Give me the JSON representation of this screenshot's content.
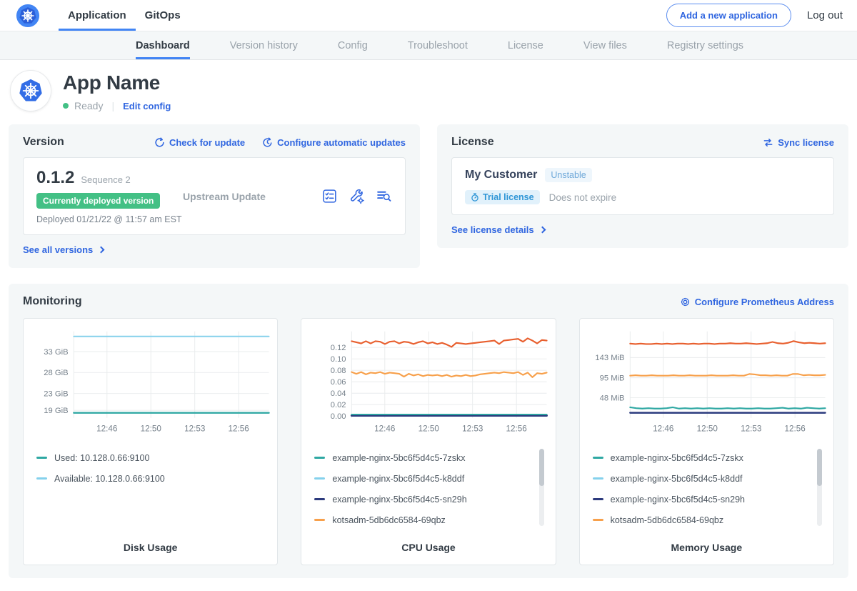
{
  "colors": {
    "link_blue": "#3066e0",
    "kubernetes_blue": "#326de6",
    "active_underline": "#4285f4",
    "deployed_green": "#43c085",
    "series_teal": "#2fa8a3",
    "series_light_blue": "#85d1ec",
    "series_navy": "#2c3a7d",
    "series_orange": "#f7a04b",
    "series_red_orange": "#e85f2e"
  },
  "topnav": {
    "items": [
      {
        "label": "Application",
        "active": true
      },
      {
        "label": "GitOps",
        "active": false
      }
    ],
    "add_app_button": "Add a new application",
    "logout": "Log out"
  },
  "subnav": {
    "tabs": [
      {
        "label": "Dashboard",
        "active": true
      },
      {
        "label": "Version history",
        "active": false
      },
      {
        "label": "Config",
        "active": false
      },
      {
        "label": "Troubleshoot",
        "active": false
      },
      {
        "label": "License",
        "active": false
      },
      {
        "label": "View files",
        "active": false
      },
      {
        "label": "Registry settings",
        "active": false
      }
    ]
  },
  "app_header": {
    "name": "App Name",
    "status": "Ready",
    "edit_config": "Edit config"
  },
  "version_card": {
    "title": "Version",
    "check_for_update": "Check for update",
    "configure_auto_updates": "Configure automatic updates",
    "version_number": "0.1.2",
    "sequence": "Sequence 2",
    "deployed_badge": "Currently deployed version",
    "deployed_at": "Deployed 01/21/22 @ 11:57 am EST",
    "update_type": "Upstream Update",
    "action_icons": [
      "preflight-checks-icon",
      "edit-config-icon",
      "view-logs-icon"
    ],
    "see_all": "See all versions"
  },
  "license_card": {
    "title": "License",
    "sync": "Sync license",
    "customer": "My Customer",
    "channel_badge": "Unstable",
    "trial_badge": "Trial license",
    "expiry": "Does not expire",
    "see_details": "See license details"
  },
  "monitoring": {
    "title": "Monitoring",
    "configure_link": "Configure Prometheus Address"
  },
  "chart_data": [
    {
      "type": "line",
      "title": "Disk Usage",
      "x_ticks": [
        "12:46",
        "12:50",
        "12:53",
        "12:56"
      ],
      "y_ticks": [
        {
          "label": "33 GiB",
          "value": 33
        },
        {
          "label": "28 GiB",
          "value": 28
        },
        {
          "label": "23 GiB",
          "value": 23
        },
        {
          "label": "19 GiB",
          "value": 19
        }
      ],
      "ylim": [
        17.2,
        37.8
      ],
      "grid": true,
      "legend_position": "bottom-left",
      "scrollbar": false,
      "series": [
        {
          "name": "Available: 10.128.0.66:9100",
          "color": "#85d1ec",
          "width": 2,
          "values": [
            36.6,
            36.6,
            36.6
          ]
        },
        {
          "name": "Used: 10.128.0.66:9100",
          "color": "#2fa8a3",
          "width": 2.5,
          "values": [
            18.4,
            18.4,
            18.4
          ]
        }
      ],
      "legend": [
        {
          "label": "Used: 10.128.0.66:9100",
          "color": "#2fa8a3"
        },
        {
          "label": "Available: 10.128.0.66:9100",
          "color": "#85d1ec"
        }
      ]
    },
    {
      "type": "line",
      "title": "CPU Usage",
      "x_ticks": [
        "12:46",
        "12:50",
        "12:53",
        "12:56"
      ],
      "y_ticks": [
        {
          "label": "0.12",
          "value": 0.12
        },
        {
          "label": "0.10",
          "value": 0.1
        },
        {
          "label": "0.08",
          "value": 0.08
        },
        {
          "label": "0.06",
          "value": 0.06
        },
        {
          "label": "0.04",
          "value": 0.04
        },
        {
          "label": "0.02",
          "value": 0.02
        },
        {
          "label": "0.00",
          "value": 0.0
        }
      ],
      "ylim": [
        -0.003,
        0.148
      ],
      "grid": true,
      "legend_position": "bottom-left",
      "scrollbar": true,
      "series": [
        {
          "name": "example-nginx-5bc6f5d4c5-k8ddf",
          "color": "#85d1ec",
          "width": 2,
          "values": [
            0.002,
            0.002
          ]
        },
        {
          "name": "example-nginx-5bc6f5d4c5-sn29h",
          "color": "#2c3a7d",
          "width": 3,
          "values": [
            0.001,
            0.001
          ]
        },
        {
          "name": "example-nginx-5bc6f5d4c5-7zskx",
          "color": "#2fa8a3",
          "width": 2,
          "values": [
            0.003,
            0.003
          ]
        },
        {
          "name": "kotsadm-5db6dc6584-69qbz",
          "color": "#f7a04b",
          "width": 2.2,
          "values": [
            0.077,
            0.074,
            0.077,
            0.073,
            0.076,
            0.075,
            0.077,
            0.074,
            0.076,
            0.075,
            0.074,
            0.069,
            0.074,
            0.071,
            0.073,
            0.07,
            0.072,
            0.071,
            0.072,
            0.07,
            0.072,
            0.069,
            0.071,
            0.07,
            0.072,
            0.07,
            0.071,
            0.073,
            0.074,
            0.075,
            0.076,
            0.075,
            0.077,
            0.076,
            0.075,
            0.077,
            0.072,
            0.076,
            0.068,
            0.075,
            0.074,
            0.076
          ]
        },
        {
          "name": "",
          "color": "#e85f2e",
          "width": 2.2,
          "values": [
            0.131,
            0.129,
            0.127,
            0.131,
            0.127,
            0.131,
            0.13,
            0.126,
            0.13,
            0.131,
            0.127,
            0.13,
            0.129,
            0.126,
            0.129,
            0.131,
            0.127,
            0.129,
            0.126,
            0.128,
            0.125,
            0.121,
            0.128,
            0.127,
            0.126,
            0.127,
            0.128,
            0.129,
            0.13,
            0.131,
            0.132,
            0.126,
            0.132,
            0.133,
            0.134,
            0.135,
            0.13,
            0.136,
            0.132,
            0.127,
            0.133,
            0.132
          ]
        }
      ],
      "legend": [
        {
          "label": "example-nginx-5bc6f5d4c5-7zskx",
          "color": "#2fa8a3"
        },
        {
          "label": "example-nginx-5bc6f5d4c5-k8ddf",
          "color": "#85d1ec"
        },
        {
          "label": "example-nginx-5bc6f5d4c5-sn29h",
          "color": "#2c3a7d"
        },
        {
          "label": "kotsadm-5db6dc6584-69qbz",
          "color": "#f7a04b"
        }
      ]
    },
    {
      "type": "line",
      "title": "Memory Usage",
      "x_ticks": [
        "12:46",
        "12:50",
        "12:53",
        "12:56"
      ],
      "y_ticks": [
        {
          "label": "143 MiB",
          "value": 143
        },
        {
          "label": "95 MiB",
          "value": 95
        },
        {
          "label": "48 MiB",
          "value": 48
        }
      ],
      "ylim": [
        0,
        205
      ],
      "grid": true,
      "legend_position": "bottom-left",
      "scrollbar": true,
      "series": [
        {
          "name": "example-nginx-5bc6f5d4c5-k8ddf",
          "color": "#85d1ec",
          "width": 2,
          "values": [
            12,
            12
          ]
        },
        {
          "name": "example-nginx-5bc6f5d4c5-sn29h",
          "color": "#2c3a7d",
          "width": 2.5,
          "values": [
            12,
            12
          ]
        },
        {
          "name": "example-nginx-5bc6f5d4c5-7zskx",
          "color": "#2fa8a3",
          "width": 2.2,
          "values": [
            25,
            23,
            22,
            23,
            22,
            22,
            23,
            25,
            22,
            23,
            22,
            23,
            22,
            23,
            22,
            22,
            23,
            22,
            23,
            22,
            22,
            23,
            22,
            22,
            23,
            24,
            22,
            23,
            22,
            24,
            23,
            22,
            23
          ]
        },
        {
          "name": "kotsadm-5db6dc6584-69qbz",
          "color": "#f7a04b",
          "width": 2.2,
          "values": [
            100,
            101,
            100,
            100,
            101,
            100,
            100,
            100,
            101,
            100,
            100,
            101,
            100,
            100,
            100,
            101,
            100,
            100,
            100,
            101,
            100,
            100,
            104,
            103,
            101,
            101,
            100,
            101,
            100,
            100,
            104,
            104,
            101,
            102,
            101,
            101,
            102
          ]
        },
        {
          "name": "",
          "color": "#e85f2e",
          "width": 2.2,
          "values": [
            176,
            175,
            176,
            175,
            175,
            176,
            175,
            176,
            175,
            176,
            176,
            175,
            176,
            175,
            176,
            176,
            175,
            176,
            176,
            177,
            176,
            176,
            177,
            176,
            175,
            176,
            177,
            180,
            177,
            176,
            178,
            182,
            179,
            177,
            178,
            177,
            176,
            177
          ]
        }
      ],
      "legend": [
        {
          "label": "example-nginx-5bc6f5d4c5-7zskx",
          "color": "#2fa8a3"
        },
        {
          "label": "example-nginx-5bc6f5d4c5-k8ddf",
          "color": "#85d1ec"
        },
        {
          "label": "example-nginx-5bc6f5d4c5-sn29h",
          "color": "#2c3a7d"
        },
        {
          "label": "kotsadm-5db6dc6584-69qbz",
          "color": "#f7a04b"
        }
      ]
    }
  ]
}
